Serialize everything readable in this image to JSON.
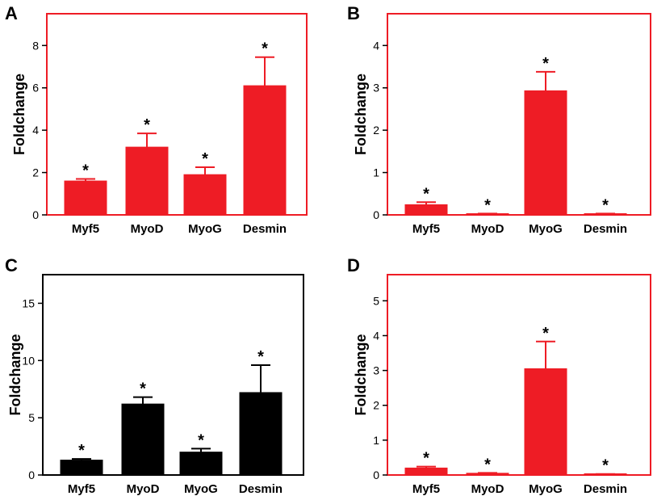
{
  "chart_data": [
    {
      "panel": "A",
      "type": "bar",
      "categories": [
        "Myf5",
        "MyoD",
        "MyoG",
        "Desmin"
      ],
      "values": [
        1.6,
        3.2,
        1.9,
        6.1
      ],
      "errors": [
        0.1,
        0.65,
        0.35,
        1.35
      ],
      "significance": [
        "*",
        "*",
        "*",
        "*"
      ],
      "ylabel": "Foldchange",
      "yticks": [
        "0",
        "2",
        "4",
        "6",
        "8"
      ],
      "ylim": [
        0,
        9.5
      ],
      "bar_color": "#ee1c25",
      "frame_color": "#ee1c25"
    },
    {
      "panel": "B",
      "type": "bar",
      "categories": [
        "Myf5",
        "MyoD",
        "MyoG",
        "Desmin"
      ],
      "values": [
        0.24,
        0.02,
        2.93,
        0.02
      ],
      "errors": [
        0.06,
        0.01,
        0.45,
        0.01
      ],
      "significance": [
        "*",
        "*",
        "*",
        "*"
      ],
      "ylabel": "Foldchange",
      "yticks": [
        "0",
        "1",
        "2",
        "3",
        "4"
      ],
      "ylim": [
        0,
        4.75
      ],
      "bar_color": "#ee1c25",
      "frame_color": "#ee1c25"
    },
    {
      "panel": "C",
      "type": "bar",
      "categories": [
        "Myf5",
        "MyoD",
        "MyoG",
        "Desmin"
      ],
      "values": [
        1.3,
        6.2,
        2.0,
        7.2
      ],
      "errors": [
        0.1,
        0.6,
        0.3,
        2.4
      ],
      "significance": [
        "*",
        "*",
        "*",
        "*"
      ],
      "ylabel": "Foldchange",
      "yticks": [
        "0",
        "5",
        "10",
        "15"
      ],
      "ylim": [
        0,
        17.5
      ],
      "bar_color": "#000000",
      "frame_color": "#000000"
    },
    {
      "panel": "D",
      "type": "bar",
      "categories": [
        "Myf5",
        "MyoD",
        "MyoG",
        "Desmin"
      ],
      "values": [
        0.2,
        0.05,
        3.05,
        0.02
      ],
      "errors": [
        0.04,
        0.01,
        0.78,
        0.01
      ],
      "significance": [
        "*",
        "*",
        "*",
        "*"
      ],
      "ylabel": "Foldchange",
      "yticks": [
        "0",
        "1",
        "2",
        "3",
        "4",
        "5"
      ],
      "ylim": [
        0,
        5.75
      ],
      "bar_color": "#ee1c25",
      "frame_color": "#ee1c25"
    }
  ]
}
